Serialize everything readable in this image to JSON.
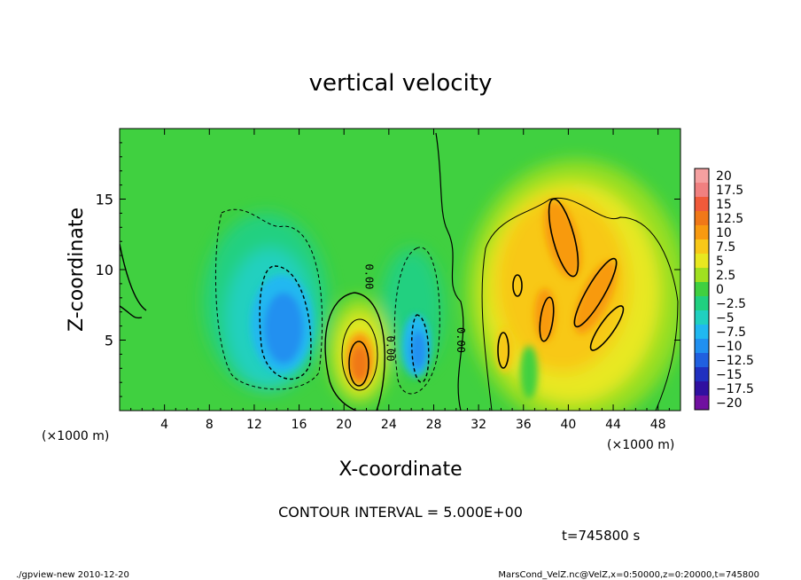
{
  "chart_data": {
    "type": "heatmap",
    "title": "vertical velocity",
    "xlabel": "X-coordinate",
    "ylabel": "Z-coordinate",
    "x_unit": "(×1000 m)",
    "y_unit": "(×1000 m)",
    "xlim": [
      0,
      50
    ],
    "ylim": [
      0,
      20
    ],
    "x_ticks": [
      4,
      8,
      12,
      16,
      20,
      24,
      28,
      32,
      36,
      40,
      44,
      48
    ],
    "y_ticks": [
      5,
      10,
      15
    ],
    "zero_contour_label": "0.00",
    "contour_interval_text": "CONTOUR INTERVAL = 5.000E+00",
    "colorbar": {
      "levels": [
        20,
        17.5,
        15,
        12.5,
        10,
        7.5,
        5,
        2.5,
        0,
        -2.5,
        -5,
        -7.5,
        -10,
        -12.5,
        -15,
        -17.5,
        -20
      ],
      "labels": [
        "20",
        "17.5",
        "15",
        "12.5",
        "10",
        "7.5",
        "5",
        "2.5",
        "0",
        "−2.5",
        "−5",
        "−7.5",
        "−10",
        "−12.5",
        "−15",
        "−17.5",
        "−20"
      ],
      "colors": [
        "#f5a0a0",
        "#f08080",
        "#f05a3a",
        "#f07818",
        "#f89a10",
        "#f8c818",
        "#e8e820",
        "#a0e020",
        "#40d040",
        "#20d080",
        "#20d0c0",
        "#20b8f0",
        "#2090f0",
        "#2060e0",
        "#2030c0",
        "#3010a0",
        "#7010a0"
      ]
    },
    "features": [
      {
        "kind": "updraft",
        "x": 21.5,
        "z": 3.2,
        "max": 15
      },
      {
        "kind": "downdraft",
        "x": 14.5,
        "z": 5.5,
        "min": -12.5
      },
      {
        "kind": "downdraft",
        "x": 26.5,
        "z": 4.5,
        "min": -10
      },
      {
        "kind": "updraft",
        "x": 39.5,
        "z": 12.5,
        "max": 12.5
      },
      {
        "kind": "updraft",
        "x": 43,
        "z": 8.5,
        "max": 12.5
      },
      {
        "kind": "updraft",
        "x": 37.5,
        "z": 6.5,
        "max": 12.5
      },
      {
        "kind": "updraft",
        "x": 34.5,
        "z": 5,
        "max": 10
      }
    ]
  },
  "time_text": "t=745800 s",
  "footer": {
    "left": "./gpview-new  2010-12-20",
    "right": "MarsCond_VelZ.nc@VelZ,x=0:50000,z=0:20000,t=745800"
  }
}
